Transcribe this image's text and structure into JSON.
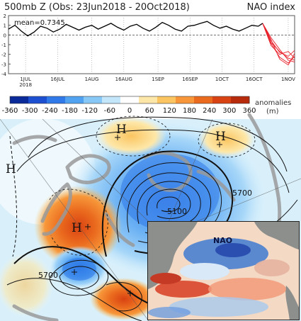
{
  "header": {
    "title_left": "500mb Z (Obs: 23Jun2018 - 20Oct2018)",
    "title_right": "NAO index"
  },
  "chart_data": [
    {
      "type": "line",
      "title": "NAO index",
      "annotation": "mean=0.7345",
      "ylim": [
        -4,
        2
      ],
      "y_ticks": [
        "2",
        "1",
        "0",
        "-1",
        "-2",
        "-3",
        "-4"
      ],
      "x_tick_labels": [
        "1JUL",
        "16JUL",
        "1AUG",
        "16AUG",
        "1SEP",
        "16SEP",
        "1OCT",
        "16OCT",
        "1NOV"
      ],
      "x_year_label": "2018",
      "observed_color": "#000000",
      "forecast_color": "#e8202a",
      "series": [
        {
          "x": [
            "2018-06-23",
            "2018-06-26",
            "2018-06-29",
            "2018-07-02",
            "2018-07-05",
            "2018-07-08",
            "2018-07-11",
            "2018-07-14",
            "2018-07-17",
            "2018-07-20",
            "2018-07-23",
            "2018-07-26",
            "2018-07-29",
            "2018-08-01",
            "2018-08-04",
            "2018-08-07",
            "2018-08-10",
            "2018-08-13",
            "2018-08-16",
            "2018-08-19",
            "2018-08-22",
            "2018-08-25",
            "2018-08-28",
            "2018-08-31",
            "2018-09-03",
            "2018-09-06",
            "2018-09-09",
            "2018-09-12",
            "2018-09-15",
            "2018-09-18",
            "2018-09-21",
            "2018-09-24",
            "2018-09-27",
            "2018-09-30",
            "2018-10-03",
            "2018-10-06",
            "2018-10-09",
            "2018-10-12",
            "2018-10-15",
            "2018-10-18",
            "2018-10-20"
          ],
          "values": [
            0.6,
            1.0,
            0.4,
            -0.1,
            0.3,
            0.9,
            0.7,
            0.3,
            0.6,
            1.1,
            0.8,
            0.5,
            0.8,
            1.0,
            0.6,
            0.9,
            1.2,
            0.8,
            0.5,
            0.9,
            1.1,
            0.7,
            0.4,
            0.8,
            1.3,
            1.0,
            0.6,
            0.4,
            0.9,
            1.0,
            1.2,
            1.4,
            1.0,
            0.7,
            0.9,
            0.6,
            0.4,
            0.7,
            1.0,
            0.9,
            1.2
          ]
        }
      ],
      "forecast": [
        {
          "x": [
            "2018-10-20",
            "2018-10-24",
            "2018-10-28",
            "2018-11-01",
            "2018-11-04"
          ],
          "values": [
            1.2,
            -0.6,
            -1.8,
            -2.2,
            -1.6
          ]
        },
        {
          "x": [
            "2018-10-20",
            "2018-10-24",
            "2018-10-28",
            "2018-11-01",
            "2018-11-04"
          ],
          "values": [
            1.2,
            -0.9,
            -2.3,
            -2.9,
            -2.2
          ]
        },
        {
          "x": [
            "2018-10-20",
            "2018-10-24",
            "2018-10-28",
            "2018-11-01",
            "2018-11-04"
          ],
          "values": [
            1.2,
            -0.3,
            -1.5,
            -2.6,
            -2.8
          ]
        },
        {
          "x": [
            "2018-10-20",
            "2018-10-24",
            "2018-10-28",
            "2018-11-01",
            "2018-11-04"
          ],
          "values": [
            1.2,
            -1.1,
            -2.0,
            -1.7,
            -2.4
          ]
        },
        {
          "x": [
            "2018-10-20",
            "2018-10-24",
            "2018-10-28",
            "2018-11-01",
            "2018-11-04"
          ],
          "values": [
            1.2,
            -0.5,
            -2.5,
            -3.1,
            -1.9
          ]
        },
        {
          "x": [
            "2018-10-20",
            "2018-10-24",
            "2018-10-28",
            "2018-11-01",
            "2018-11-04"
          ],
          "values": [
            1.2,
            -0.8,
            -1.7,
            -2.4,
            -2.6
          ]
        }
      ]
    },
    {
      "type": "heatmap",
      "colorbar_ticks": [
        "-360",
        "-300",
        "-240",
        "-180",
        "-120",
        "-60",
        "0",
        "60",
        "120",
        "180",
        "240",
        "300",
        "360"
      ],
      "colorbar_colors": [
        "#0a2a9a",
        "#1d4fd1",
        "#2f79e8",
        "#52a2f2",
        "#88c8f7",
        "#c3e6fb",
        "#ffffff",
        "#fde7a8",
        "#fbc561",
        "#f7973a",
        "#ea6a1e",
        "#d94212",
        "#b72a0c"
      ],
      "colorbar_label": "anomalies",
      "colorbar_unit": "(m)",
      "contour_labels": [
        "5700",
        "5100",
        "5700",
        "5700"
      ],
      "pressure_labels": [
        "H",
        "H",
        "H",
        "H"
      ],
      "inset_label": "NAO"
    }
  ]
}
